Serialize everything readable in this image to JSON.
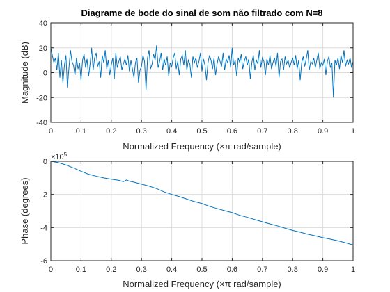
{
  "chart_data": [
    {
      "type": "line",
      "title": "Diagrame de bode do sinal de som não filtrado com N=8",
      "xlabel": "Normalized Frequency  (×π rad/sample)",
      "ylabel": "Magnitude (dB)",
      "xlim": [
        0,
        1
      ],
      "ylim": [
        -40,
        40
      ],
      "xticks": [
        0,
        0.1,
        0.2,
        0.3,
        0.4,
        0.5,
        0.6,
        0.7,
        0.8,
        0.9,
        1
      ],
      "xtick_labels": [
        "0",
        "0.1",
        "0.2",
        "0.3",
        "0.4",
        "0.5",
        "0.6",
        "0.7",
        "0.8",
        "0.9",
        "1"
      ],
      "yticks": [
        -40,
        -20,
        0,
        20,
        40
      ],
      "ytick_labels": [
        "-40",
        "-20",
        "0",
        "20",
        "40"
      ],
      "grid": true,
      "color": "#0072bd",
      "series": [
        {
          "x": [
            0,
            0.005,
            0.01,
            0.015,
            0.02,
            0.025,
            0.03,
            0.035,
            0.04,
            0.045,
            0.05,
            0.055,
            0.06,
            0.065,
            0.07,
            0.075,
            0.08,
            0.085,
            0.09,
            0.095,
            0.1,
            0.105,
            0.11,
            0.115,
            0.12,
            0.125,
            0.13,
            0.135,
            0.14,
            0.145,
            0.15,
            0.155,
            0.16,
            0.165,
            0.17,
            0.175,
            0.18,
            0.185,
            0.19,
            0.195,
            0.2,
            0.205,
            0.21,
            0.215,
            0.22,
            0.225,
            0.23,
            0.235,
            0.24,
            0.245,
            0.25,
            0.255,
            0.26,
            0.265,
            0.27,
            0.275,
            0.28,
            0.285,
            0.29,
            0.295,
            0.3,
            0.305,
            0.31,
            0.315,
            0.32,
            0.325,
            0.33,
            0.335,
            0.34,
            0.345,
            0.35,
            0.355,
            0.36,
            0.365,
            0.37,
            0.375,
            0.38,
            0.385,
            0.39,
            0.395,
            0.4,
            0.405,
            0.41,
            0.415,
            0.42,
            0.425,
            0.43,
            0.435,
            0.44,
            0.445,
            0.45,
            0.455,
            0.46,
            0.465,
            0.47,
            0.475,
            0.48,
            0.485,
            0.49,
            0.495,
            0.5,
            0.505,
            0.51,
            0.515,
            0.52,
            0.525,
            0.53,
            0.535,
            0.54,
            0.545,
            0.55,
            0.555,
            0.56,
            0.565,
            0.57,
            0.575,
            0.58,
            0.585,
            0.59,
            0.595,
            0.6,
            0.605,
            0.61,
            0.615,
            0.62,
            0.625,
            0.63,
            0.635,
            0.64,
            0.645,
            0.65,
            0.655,
            0.66,
            0.665,
            0.67,
            0.675,
            0.68,
            0.685,
            0.69,
            0.695,
            0.7,
            0.705,
            0.71,
            0.715,
            0.72,
            0.725,
            0.73,
            0.735,
            0.74,
            0.745,
            0.75,
            0.755,
            0.76,
            0.765,
            0.77,
            0.775,
            0.78,
            0.785,
            0.79,
            0.795,
            0.8,
            0.805,
            0.81,
            0.815,
            0.82,
            0.825,
            0.83,
            0.835,
            0.84,
            0.845,
            0.85,
            0.855,
            0.86,
            0.865,
            0.87,
            0.875,
            0.88,
            0.885,
            0.89,
            0.895,
            0.9,
            0.905,
            0.91,
            0.915,
            0.92,
            0.925,
            0.93,
            0.935,
            0.94,
            0.945,
            0.95,
            0.955,
            0.96,
            0.965,
            0.97,
            0.975,
            0.98,
            0.985,
            0.99,
            0.995,
            1
          ],
          "y": [
            20,
            14,
            8,
            12,
            2,
            16,
            -4,
            10,
            -8,
            6,
            14,
            -12,
            4,
            18,
            9,
            6,
            -2,
            12,
            3,
            8,
            -6,
            10,
            15,
            4,
            11,
            -3,
            7,
            20,
            2,
            12,
            16,
            5,
            9,
            -4,
            14,
            8,
            18,
            3,
            10,
            -2,
            6,
            12,
            -5,
            16,
            4,
            9,
            13,
            2,
            7,
            11,
            6,
            14,
            1,
            10,
            3,
            -4,
            8,
            12,
            -8,
            2,
            5,
            14,
            9,
            -14,
            12,
            18,
            3,
            7,
            15,
            10,
            22,
            4,
            9,
            16,
            2,
            11,
            6,
            13,
            -3,
            8,
            5,
            12,
            16,
            3,
            9,
            -2,
            11,
            14,
            6,
            18,
            2,
            10,
            7,
            -4,
            13,
            8,
            12,
            4,
            9,
            16,
            1,
            11,
            6,
            -6,
            8,
            14,
            10,
            3,
            12,
            -2,
            7,
            13,
            9,
            5,
            16,
            2,
            11,
            8,
            14,
            4,
            20,
            6,
            10,
            -3,
            12,
            8,
            15,
            3,
            9,
            13,
            6,
            11,
            -5,
            8,
            14,
            2,
            10,
            7,
            18,
            4,
            12,
            9,
            -2,
            11,
            6,
            14,
            3,
            8,
            12,
            5,
            16,
            -4,
            9,
            11,
            2,
            13,
            7,
            10,
            4,
            8,
            12,
            6,
            14,
            3,
            10,
            -6,
            8,
            13,
            5,
            11,
            18,
            2,
            9,
            7,
            12,
            4,
            10,
            16,
            3,
            8,
            6,
            11,
            -2,
            9,
            13,
            4,
            8,
            -20,
            10,
            6,
            12,
            3,
            14,
            8,
            18,
            5,
            10,
            7,
            12,
            4,
            9
          ]
        }
      ]
    },
    {
      "type": "line",
      "title": "",
      "xlabel": "Normalized Frequency  (×π rad/sample)",
      "ylabel": "Phase (degrees)",
      "xlim": [
        0,
        1
      ],
      "ylim": [
        -600000,
        0
      ],
      "xticks": [
        0,
        0.1,
        0.2,
        0.3,
        0.4,
        0.5,
        0.6,
        0.7,
        0.8,
        0.9,
        1
      ],
      "xtick_labels": [
        "0",
        "0.1",
        "0.2",
        "0.3",
        "0.4",
        "0.5",
        "0.6",
        "0.7",
        "0.8",
        "0.9",
        "1"
      ],
      "yticks": [
        -600000,
        -400000,
        -200000,
        0
      ],
      "ytick_labels": [
        "-6",
        "-4",
        "-2",
        "0"
      ],
      "exponent_label": "×10",
      "exponent_power": "5",
      "grid": true,
      "color": "#0072bd",
      "series": [
        {
          "x": [
            0,
            0.025,
            0.05,
            0.075,
            0.1,
            0.125,
            0.15,
            0.175,
            0.2,
            0.225,
            0.24,
            0.25,
            0.26,
            0.275,
            0.3,
            0.325,
            0.35,
            0.375,
            0.4,
            0.425,
            0.45,
            0.475,
            0.5,
            0.525,
            0.55,
            0.575,
            0.6,
            0.625,
            0.65,
            0.675,
            0.7,
            0.725,
            0.75,
            0.775,
            0.8,
            0.825,
            0.85,
            0.875,
            0.9,
            0.925,
            0.95,
            0.975,
            1
          ],
          "y": [
            0,
            -8000,
            -22000,
            -40000,
            -60000,
            -78000,
            -90000,
            -100000,
            -108000,
            -115000,
            -123000,
            -113000,
            -120000,
            -126000,
            -138000,
            -150000,
            -165000,
            -185000,
            -200000,
            -213000,
            -228000,
            -243000,
            -255000,
            -272000,
            -285000,
            -298000,
            -310000,
            -326000,
            -338000,
            -352000,
            -365000,
            -378000,
            -390000,
            -404000,
            -417000,
            -428000,
            -440000,
            -450000,
            -461000,
            -470000,
            -480000,
            -492000,
            -505000
          ]
        }
      ]
    }
  ]
}
